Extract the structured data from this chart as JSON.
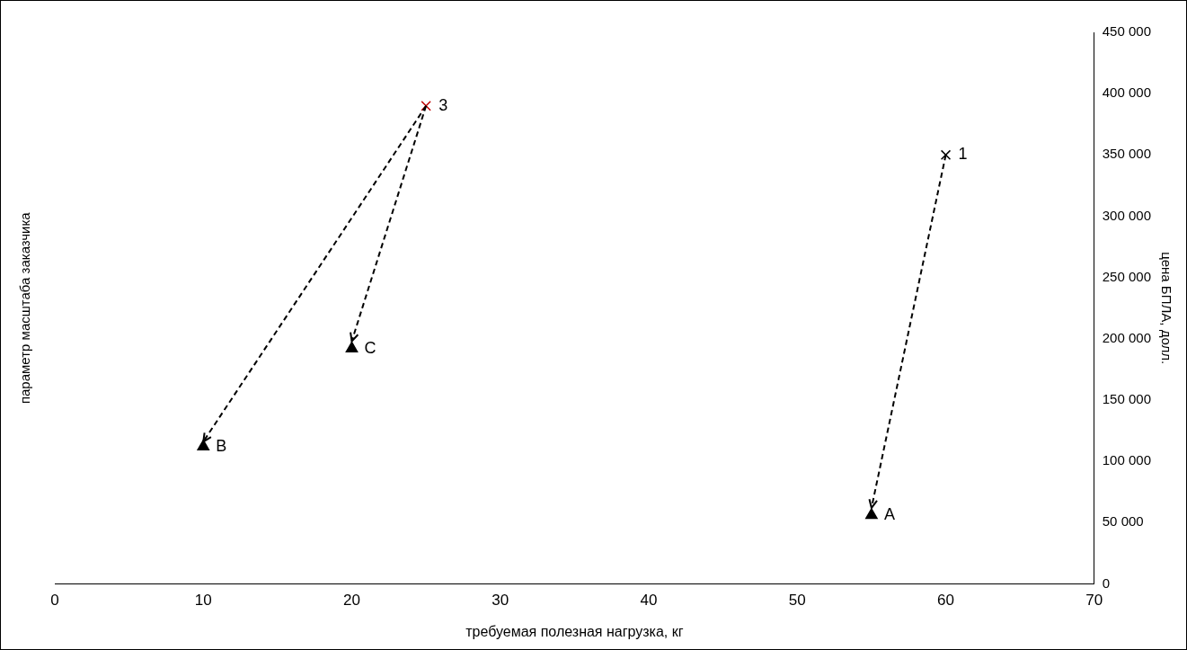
{
  "chart_data": {
    "type": "scatter",
    "xlabel": "требуемая полезная нагрузка, кг",
    "ylabel": "цена БПЛА, долл.",
    "xlim": [
      0,
      70
    ],
    "xticks": [
      0,
      10,
      20,
      30,
      40,
      50,
      60,
      70
    ],
    "ylim": [
      0,
      450000
    ],
    "yticks": [
      {
        "value": 0,
        "label": "0"
      },
      {
        "value": 50000,
        "label": "50 000"
      },
      {
        "value": 100000,
        "label": "100 000"
      },
      {
        "value": 150000,
        "label": "150 000"
      },
      {
        "value": 200000,
        "label": "200 000"
      },
      {
        "value": 250000,
        "label": "250 000"
      },
      {
        "value": 300000,
        "label": "300 000"
      },
      {
        "value": 350000,
        "label": "350 000"
      },
      {
        "value": 400000,
        "label": "400 000"
      },
      {
        "value": 450000,
        "label": "450 000"
      }
    ],
    "grid": false,
    "legend": false,
    "series": [
      {
        "type": "line",
        "color": "#000000",
        "line_style": "dashed",
        "marker": "none",
        "x": [
          60,
          55
        ],
        "values": [
          350000,
          62000
        ]
      },
      {
        "type": "line",
        "color": "#000000",
        "line_style": "dashed",
        "marker": "none",
        "x": [
          25,
          10
        ],
        "values": [
          390000,
          116000
        ]
      },
      {
        "type": "line",
        "color": "#000000",
        "line_style": "dashed",
        "marker": "none",
        "x": [
          25,
          20
        ],
        "values": [
          390000,
          198000
        ]
      },
      {
        "type": "scatter",
        "color": "#000000",
        "marker": "cross",
        "x": [
          60
        ],
        "values": [
          350000
        ]
      },
      {
        "type": "scatter",
        "color": "#c00000",
        "marker": "cross",
        "x": [
          25
        ],
        "values": [
          390000
        ]
      },
      {
        "type": "scatter",
        "color": "#000000",
        "marker": "triangle",
        "x": [
          55,
          10,
          20
        ],
        "values": [
          56000,
          112000,
          192000
        ]
      }
    ],
    "annotations": [
      "параметр масштаба заказчика",
      {
        "text": "1",
        "x": 60,
        "y": 350000
      },
      {
        "text": "3",
        "x": 25,
        "y": 390000
      },
      {
        "text": "A",
        "x": 55,
        "y": 56000
      },
      {
        "text": "B",
        "x": 10,
        "y": 112000
      },
      {
        "text": "C",
        "x": 20,
        "y": 192000
      }
    ]
  }
}
